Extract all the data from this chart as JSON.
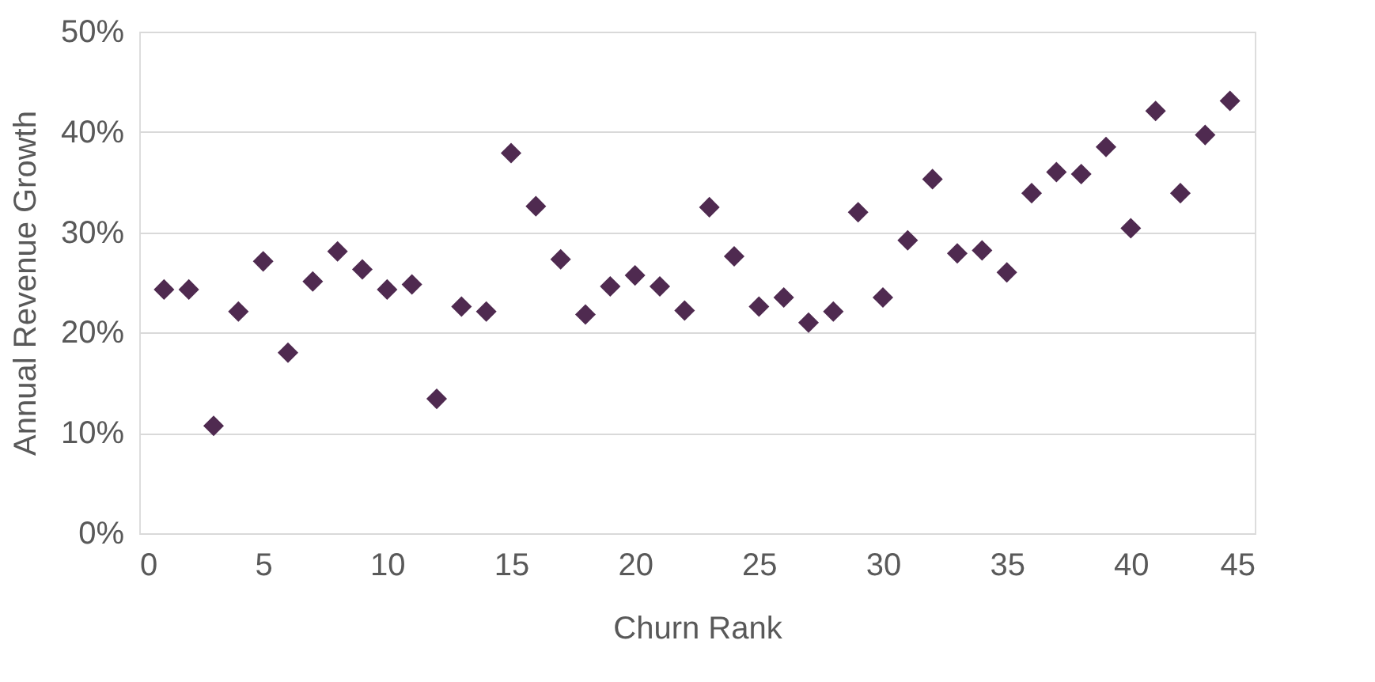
{
  "chart_data": {
    "type": "scatter",
    "xlabel": "Churn Rank",
    "ylabel": "Annual Revenue Growth",
    "x": [
      1,
      2,
      3,
      4,
      5,
      6,
      7,
      8,
      9,
      10,
      11,
      12,
      13,
      14,
      15,
      16,
      17,
      18,
      19,
      20,
      21,
      22,
      23,
      24,
      25,
      26,
      27,
      28,
      29,
      30,
      31,
      32,
      33,
      34,
      35,
      36,
      37,
      38,
      39,
      40,
      41,
      42,
      43,
      44
    ],
    "series": [
      {
        "color": "#4f2a50",
        "values": [
          24.3,
          24.3,
          10.7,
          22.1,
          27.1,
          18.0,
          25.1,
          28.1,
          26.3,
          24.3,
          24.8,
          13.4,
          22.6,
          22.1,
          37.9,
          32.6,
          27.3,
          21.8,
          24.6,
          25.7,
          24.6,
          22.2,
          32.5,
          27.6,
          22.6,
          23.5,
          21.0,
          22.1,
          32.0,
          23.5,
          29.2,
          35.3,
          27.9,
          28.2,
          26.0,
          33.9,
          36.0,
          35.8,
          38.5,
          30.4,
          42.1,
          33.9,
          39.7,
          43.1
        ]
      }
    ],
    "xlim": [
      0,
      45
    ],
    "xticks": [
      0,
      5,
      10,
      15,
      20,
      25,
      30,
      35,
      40,
      45
    ],
    "ylim": [
      0,
      50
    ],
    "yticks": [
      {
        "value": 0,
        "label": "0%"
      },
      {
        "value": 10,
        "label": "10%"
      },
      {
        "value": 20,
        "label": "20%"
      },
      {
        "value": 30,
        "label": "30%"
      },
      {
        "value": 40,
        "label": "40%"
      },
      {
        "value": 50,
        "label": "50%"
      }
    ],
    "grid": "y",
    "marker": "diamond"
  }
}
